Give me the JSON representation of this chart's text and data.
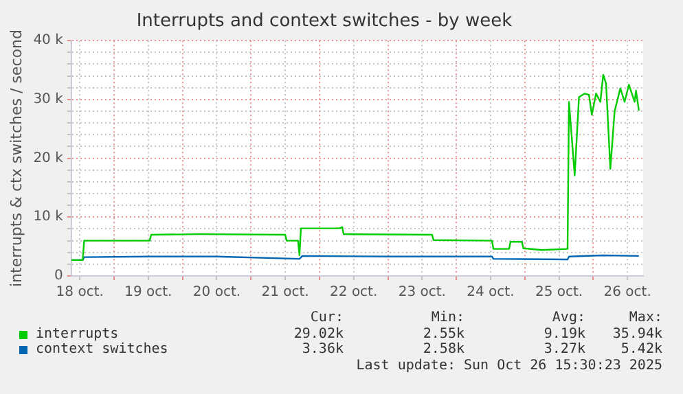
{
  "chart_data": {
    "type": "line",
    "title": "Interrupts and context switches - by week",
    "ylabel": "interrupts & ctx switches / second",
    "xlim": [
      "2025-10-18T09:00",
      "2025-10-26T17:30"
    ],
    "xticks": [
      {
        "value": "2025-10-18T12:00",
        "label": "18 oct."
      },
      {
        "value": "2025-10-19T00:00",
        "label": null
      },
      {
        "value": "2025-10-19T12:00",
        "label": "19 oct."
      },
      {
        "value": "2025-10-20T00:00",
        "label": null
      },
      {
        "value": "2025-10-20T12:00",
        "label": "20 oct."
      },
      {
        "value": "2025-10-21T00:00",
        "label": null
      },
      {
        "value": "2025-10-21T12:00",
        "label": "21 oct."
      },
      {
        "value": "2025-10-22T00:00",
        "label": null
      },
      {
        "value": "2025-10-22T12:00",
        "label": "22 oct."
      },
      {
        "value": "2025-10-23T00:00",
        "label": null
      },
      {
        "value": "2025-10-23T12:00",
        "label": "23 oct."
      },
      {
        "value": "2025-10-24T00:00",
        "label": null
      },
      {
        "value": "2025-10-24T12:00",
        "label": "24 oct."
      },
      {
        "value": "2025-10-25T00:00",
        "label": null
      },
      {
        "value": "2025-10-25T12:00",
        "label": "25 oct."
      },
      {
        "value": "2025-10-26T00:00",
        "label": null
      },
      {
        "value": "2025-10-26T12:00",
        "label": "26 oct."
      }
    ],
    "ylim": [
      0,
      40000
    ],
    "yticks": [
      0,
      {
        "value": 2000,
        "label": null
      },
      {
        "value": 4000,
        "label": null
      },
      {
        "value": 6000,
        "label": null
      },
      {
        "value": 8000,
        "label": null
      },
      {
        "value": 10000,
        "label": "10 k"
      },
      {
        "value": 12000,
        "label": null
      },
      {
        "value": 14000,
        "label": null
      },
      {
        "value": 16000,
        "label": null
      },
      {
        "value": 18000,
        "label": null
      },
      {
        "value": 20000,
        "label": "20 k"
      },
      {
        "value": 22000,
        "label": null
      },
      {
        "value": 24000,
        "label": null
      },
      {
        "value": 26000,
        "label": null
      },
      {
        "value": 28000,
        "label": null
      },
      {
        "value": 30000,
        "label": "30 k"
      },
      {
        "value": 32000,
        "label": null
      },
      {
        "value": 34000,
        "label": null
      },
      {
        "value": 36000,
        "label": null
      },
      {
        "value": 38000,
        "label": null
      },
      {
        "value": 40000,
        "label": "40 k"
      }
    ],
    "grid": true,
    "legend": "bottom",
    "marker": "none",
    "line_style": "solid",
    "series": [
      {
        "name": "interrupts",
        "color": "#00cc00",
        "x": [
          "2025-10-18T09:00",
          "2025-10-18T13:00",
          "2025-10-18T13:30",
          "2025-10-19T00:00",
          "2025-10-19T12:30",
          "2025-10-19T13:00",
          "2025-10-20T06:00",
          "2025-10-21T12:00",
          "2025-10-21T12:30",
          "2025-10-21T16:30",
          "2025-10-21T17:00",
          "2025-10-21T17:30",
          "2025-10-22T07:00",
          "2025-10-22T08:00",
          "2025-10-22T08:30",
          "2025-10-23T15:30",
          "2025-10-23T16:00",
          "2025-10-24T12:30",
          "2025-10-24T13:00",
          "2025-10-24T18:30",
          "2025-10-24T19:00",
          "2025-10-24T23:00",
          "2025-10-24T23:30",
          "2025-10-25T06:00",
          "2025-10-25T15:00",
          "2025-10-25T15:30",
          "2025-10-25T17:30",
          "2025-10-25T19:00",
          "2025-10-25T21:00",
          "2025-10-25T22:30",
          "2025-10-25T23:30",
          "2025-10-26T01:00",
          "2025-10-26T02:30",
          "2025-10-26T03:30",
          "2025-10-26T04:30",
          "2025-10-26T06:00",
          "2025-10-26T07:30",
          "2025-10-26T09:30",
          "2025-10-26T11:00",
          "2025-10-26T12:30",
          "2025-10-26T14:30",
          "2025-10-26T15:00",
          "2025-10-26T16:00"
        ],
        "values": [
          2700,
          2700,
          6000,
          6000,
          6000,
          7000,
          7100,
          7000,
          6000,
          6000,
          3500,
          8100,
          8100,
          8300,
          7100,
          7000,
          6100,
          6000,
          4600,
          4600,
          5800,
          5800,
          4700,
          4400,
          4600,
          29600,
          17100,
          30400,
          31000,
          30800,
          27400,
          31000,
          29600,
          34200,
          32700,
          18200,
          28000,
          31900,
          29600,
          32500,
          29600,
          31500,
          28100
        ]
      },
      {
        "name": "context switches",
        "color": "#0066b3",
        "x": [
          "2025-10-18T09:00",
          "2025-10-18T13:00",
          "2025-10-18T13:30",
          "2025-10-19T12:00",
          "2025-10-20T12:00",
          "2025-10-21T17:00",
          "2025-10-21T18:00",
          "2025-10-23T00:00",
          "2025-10-24T12:30",
          "2025-10-24T13:00",
          "2025-10-25T15:00",
          "2025-10-25T15:30",
          "2025-10-26T03:30",
          "2025-10-26T16:00"
        ],
        "values": [
          2700,
          2700,
          3200,
          3300,
          3300,
          2900,
          3400,
          3300,
          3300,
          2900,
          2800,
          3300,
          3500,
          3400
        ]
      }
    ],
    "annotations": [
      "Cur:",
      "Min:",
      "Avg:",
      "Max:",
      "29.02k",
      "2.55k",
      "9.19k",
      "35.94k",
      "3.36k",
      "2.58k",
      "3.27k",
      "5.42k",
      "Last update: Sun Oct 26 15:30:23 2025"
    ]
  }
}
